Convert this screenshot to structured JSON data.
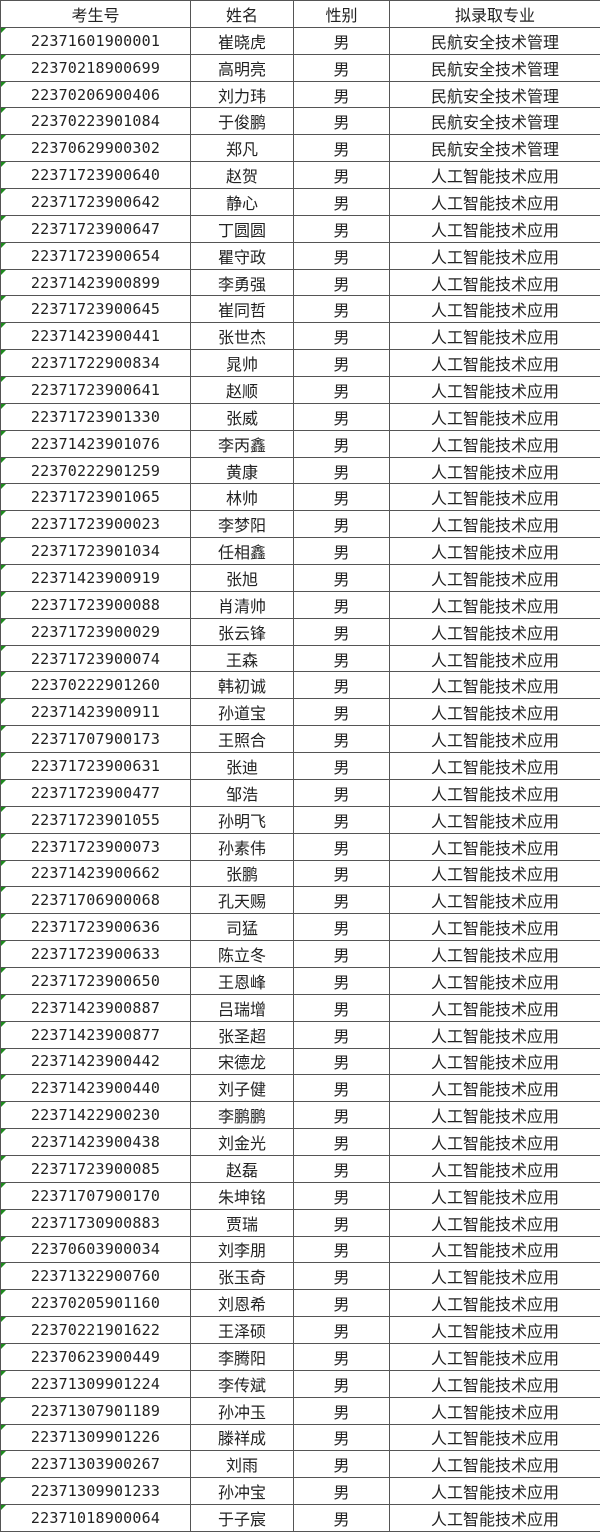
{
  "table": {
    "headers": [
      "考生号",
      "姓名",
      "性别",
      "拟录取专业"
    ],
    "rows": [
      [
        "22371601900001",
        "崔晓虎",
        "男",
        "民航安全技术管理"
      ],
      [
        "22370218900699",
        "高明亮",
        "男",
        "民航安全技术管理"
      ],
      [
        "22370206900406",
        "刘力玮",
        "男",
        "民航安全技术管理"
      ],
      [
        "22370223901084",
        "于俊鹏",
        "男",
        "民航安全技术管理"
      ],
      [
        "22370629900302",
        "郑凡",
        "男",
        "民航安全技术管理"
      ],
      [
        "22371723900640",
        "赵贺",
        "男",
        "人工智能技术应用"
      ],
      [
        "22371723900642",
        "静心",
        "男",
        "人工智能技术应用"
      ],
      [
        "22371723900647",
        "丁圆圆",
        "男",
        "人工智能技术应用"
      ],
      [
        "22371723900654",
        "瞿守政",
        "男",
        "人工智能技术应用"
      ],
      [
        "22371423900899",
        "李勇强",
        "男",
        "人工智能技术应用"
      ],
      [
        "22371723900645",
        "崔同哲",
        "男",
        "人工智能技术应用"
      ],
      [
        "22371423900441",
        "张世杰",
        "男",
        "人工智能技术应用"
      ],
      [
        "22371722900834",
        "晁帅",
        "男",
        "人工智能技术应用"
      ],
      [
        "22371723900641",
        "赵顺",
        "男",
        "人工智能技术应用"
      ],
      [
        "22371723901330",
        "张威",
        "男",
        "人工智能技术应用"
      ],
      [
        "22371423901076",
        "李丙鑫",
        "男",
        "人工智能技术应用"
      ],
      [
        "22370222901259",
        "黄康",
        "男",
        "人工智能技术应用"
      ],
      [
        "22371723901065",
        "林帅",
        "男",
        "人工智能技术应用"
      ],
      [
        "22371723900023",
        "李梦阳",
        "男",
        "人工智能技术应用"
      ],
      [
        "22371723901034",
        "任相鑫",
        "男",
        "人工智能技术应用"
      ],
      [
        "22371423900919",
        "张旭",
        "男",
        "人工智能技术应用"
      ],
      [
        "22371723900088",
        "肖清帅",
        "男",
        "人工智能技术应用"
      ],
      [
        "22371723900029",
        "张云锋",
        "男",
        "人工智能技术应用"
      ],
      [
        "22371723900074",
        "王森",
        "男",
        "人工智能技术应用"
      ],
      [
        "22370222901260",
        "韩初诚",
        "男",
        "人工智能技术应用"
      ],
      [
        "22371423900911",
        "孙道宝",
        "男",
        "人工智能技术应用"
      ],
      [
        "22371707900173",
        "王照合",
        "男",
        "人工智能技术应用"
      ],
      [
        "22371723900631",
        "张迪",
        "男",
        "人工智能技术应用"
      ],
      [
        "22371723900477",
        "邹浩",
        "男",
        "人工智能技术应用"
      ],
      [
        "22371723901055",
        "孙明飞",
        "男",
        "人工智能技术应用"
      ],
      [
        "22371723900073",
        "孙素伟",
        "男",
        "人工智能技术应用"
      ],
      [
        "22371423900662",
        "张鹏",
        "男",
        "人工智能技术应用"
      ],
      [
        "22371706900068",
        "孔天赐",
        "男",
        "人工智能技术应用"
      ],
      [
        "22371723900636",
        "司猛",
        "男",
        "人工智能技术应用"
      ],
      [
        "22371723900633",
        "陈立冬",
        "男",
        "人工智能技术应用"
      ],
      [
        "22371723900650",
        "王恩峰",
        "男",
        "人工智能技术应用"
      ],
      [
        "22371423900887",
        "吕瑞增",
        "男",
        "人工智能技术应用"
      ],
      [
        "22371423900877",
        "张圣超",
        "男",
        "人工智能技术应用"
      ],
      [
        "22371423900442",
        "宋德龙",
        "男",
        "人工智能技术应用"
      ],
      [
        "22371423900440",
        "刘子健",
        "男",
        "人工智能技术应用"
      ],
      [
        "22371422900230",
        "李鹏鹏",
        "男",
        "人工智能技术应用"
      ],
      [
        "22371423900438",
        "刘金光",
        "男",
        "人工智能技术应用"
      ],
      [
        "22371723900085",
        "赵磊",
        "男",
        "人工智能技术应用"
      ],
      [
        "22371707900170",
        "朱坤铭",
        "男",
        "人工智能技术应用"
      ],
      [
        "22371730900883",
        "贾瑞",
        "男",
        "人工智能技术应用"
      ],
      [
        "22370603900034",
        "刘李朋",
        "男",
        "人工智能技术应用"
      ],
      [
        "22371322900760",
        "张玉奇",
        "男",
        "人工智能技术应用"
      ],
      [
        "22370205901160",
        "刘恩希",
        "男",
        "人工智能技术应用"
      ],
      [
        "22370221901622",
        "王泽硕",
        "男",
        "人工智能技术应用"
      ],
      [
        "22370623900449",
        "李腾阳",
        "男",
        "人工智能技术应用"
      ],
      [
        "22371309901224",
        "李传斌",
        "男",
        "人工智能技术应用"
      ],
      [
        "22371307901189",
        "孙冲玉",
        "男",
        "人工智能技术应用"
      ],
      [
        "22371309901226",
        "滕祥成",
        "男",
        "人工智能技术应用"
      ],
      [
        "22371303900267",
        "刘雨",
        "男",
        "人工智能技术应用"
      ],
      [
        "22371309901233",
        "孙冲宝",
        "男",
        "人工智能技术应用"
      ],
      [
        "22371018900064",
        "于子宸",
        "男",
        "人工智能技术应用"
      ]
    ]
  }
}
